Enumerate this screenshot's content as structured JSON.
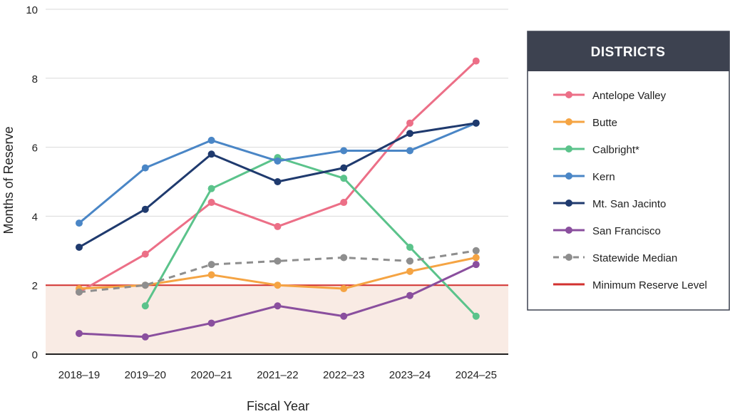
{
  "chart_data": {
    "type": "line",
    "xlabel": "Fiscal Year",
    "ylabel": "Months of Reserve",
    "ylim": [
      0,
      10
    ],
    "yticks": [
      0,
      2,
      4,
      6,
      8,
      10
    ],
    "grid": "horizontal",
    "legend_position": "right",
    "legend_title": "DISTRICTS",
    "categories": [
      "2018–19",
      "2019–20",
      "2020–21",
      "2021–22",
      "2022–23",
      "2023–24",
      "2024–25"
    ],
    "series": [
      {
        "name": "Antelope Valley",
        "color": "#ec6f87",
        "dashed": false,
        "values": [
          1.8,
          2.9,
          4.4,
          3.7,
          4.4,
          6.7,
          8.5
        ]
      },
      {
        "name": "Butte",
        "color": "#f5a443",
        "dashed": false,
        "values": [
          1.9,
          2.0,
          2.3,
          2.0,
          1.9,
          2.4,
          2.8
        ]
      },
      {
        "name": "Calbright*",
        "color": "#5bc38b",
        "dashed": false,
        "values": [
          null,
          1.4,
          4.8,
          5.7,
          5.1,
          3.1,
          1.1
        ]
      },
      {
        "name": "Kern",
        "color": "#4a86c6",
        "dashed": false,
        "values": [
          3.8,
          5.4,
          6.2,
          5.6,
          5.9,
          5.9,
          6.7
        ]
      },
      {
        "name": "Mt. San Jacinto",
        "color": "#1f3a6e",
        "dashed": false,
        "values": [
          3.1,
          4.2,
          5.8,
          5.0,
          5.4,
          6.4,
          6.7
        ]
      },
      {
        "name": "San Francisco",
        "color": "#8a4f9e",
        "dashed": false,
        "values": [
          0.6,
          0.5,
          0.9,
          1.4,
          1.1,
          1.7,
          2.6
        ]
      },
      {
        "name": "Statewide Median",
        "color": "#8e8e8e",
        "dashed": true,
        "values": [
          1.8,
          2.0,
          2.6,
          2.7,
          2.8,
          2.7,
          3.0
        ]
      }
    ],
    "reference_line": {
      "name": "Minimum Reserve Level",
      "value": 2,
      "color": "#d2312f",
      "fill": "#f9ebe4"
    }
  }
}
